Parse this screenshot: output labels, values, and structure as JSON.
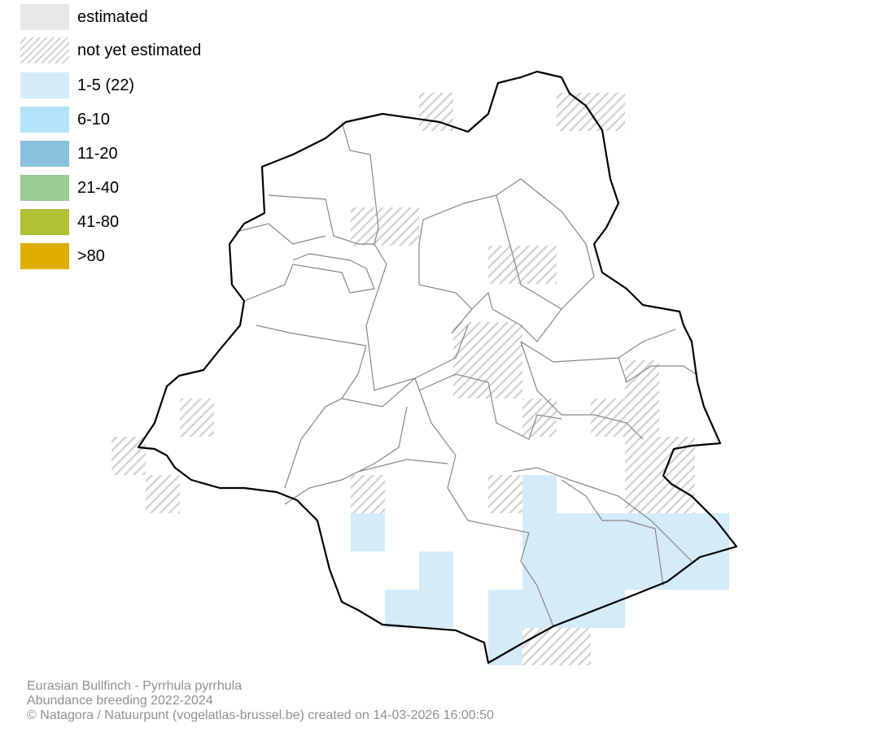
{
  "legend": {
    "items": [
      {
        "label": "estimated",
        "color": "#e8e8e8",
        "pattern": "solid"
      },
      {
        "label": "not yet estimated",
        "color": "#cfcfcf",
        "pattern": "hatched"
      },
      {
        "label": "1-5 (22)",
        "color": "#d4ebf9",
        "pattern": "solid"
      },
      {
        "label": "6-10",
        "color": "#b3e3f9",
        "pattern": "solid"
      },
      {
        "label": "11-20",
        "color": "#8ac2de",
        "pattern": "solid"
      },
      {
        "label": "21-40",
        "color": "#99cb95",
        "pattern": "solid"
      },
      {
        "label": "41-80",
        "color": "#afc135",
        "pattern": "solid"
      },
      {
        "label": ">80",
        "color": "#e0ad00",
        "pattern": "solid"
      }
    ]
  },
  "footer": {
    "species": "Eurasian Bullfinch - Pyrrhula pyrrhula",
    "subtitle": "Abundance breeding 2022-2024",
    "credit": "© Natagora / Natuurpunt (vogelatlas-brussel.be) created on 14-03-2026 16:00:50"
  },
  "map": {
    "outline_color": "#000000",
    "municipality_border_color": "#8a8580"
  }
}
